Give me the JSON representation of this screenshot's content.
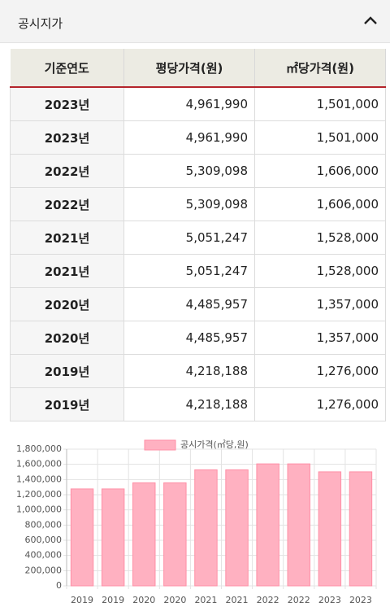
{
  "header": {
    "title": "공시지가"
  },
  "table": {
    "columns": [
      "기준연도",
      "평당가격(원)",
      "㎡당가격(원)"
    ],
    "rows": [
      [
        "2023년",
        "4,961,990",
        "1,501,000"
      ],
      [
        "2023년",
        "4,961,990",
        "1,501,000"
      ],
      [
        "2022년",
        "5,309,098",
        "1,606,000"
      ],
      [
        "2022년",
        "5,309,098",
        "1,606,000"
      ],
      [
        "2021년",
        "5,051,247",
        "1,528,000"
      ],
      [
        "2021년",
        "5,051,247",
        "1,528,000"
      ],
      [
        "2020년",
        "4,485,957",
        "1,357,000"
      ],
      [
        "2020년",
        "4,485,957",
        "1,357,000"
      ],
      [
        "2019년",
        "4,218,188",
        "1,276,000"
      ],
      [
        "2019년",
        "4,218,188",
        "1,276,000"
      ]
    ]
  },
  "chart_data": {
    "type": "bar",
    "categories": [
      "2019",
      "2019",
      "2020",
      "2020",
      "2021",
      "2021",
      "2022",
      "2022",
      "2023",
      "2023"
    ],
    "series": [
      {
        "name": "공시가격(㎡당,원)",
        "color": "#ffb1c1",
        "values": [
          1276000,
          1276000,
          1357000,
          1357000,
          1528000,
          1528000,
          1606000,
          1606000,
          1501000,
          1501000
        ]
      }
    ],
    "ylim": [
      0,
      1800000
    ],
    "yticks": [
      0,
      {
        "value": 200000,
        "label": "200,000"
      },
      {
        "value": 400000,
        "label": "400,000"
      },
      {
        "value": 600000,
        "label": "600,000"
      },
      {
        "value": 800000,
        "label": "800,000"
      },
      {
        "value": 1000000,
        "label": "1,000,000"
      },
      {
        "value": 1200000,
        "label": "1,200,000"
      },
      {
        "value": 1400000,
        "label": "1,400,000"
      },
      {
        "value": 1600000,
        "label": "1,600,000"
      },
      {
        "value": 1800000,
        "label": "1,800,000"
      }
    ],
    "grid": true,
    "legend": "top"
  }
}
